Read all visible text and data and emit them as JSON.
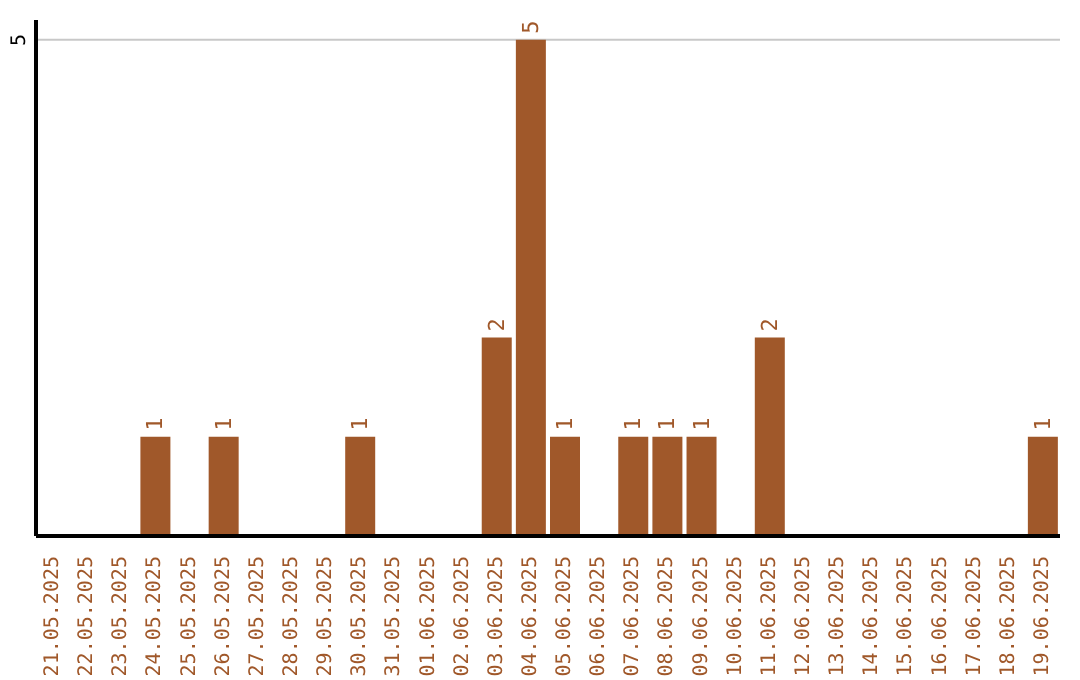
{
  "chart_data": {
    "type": "bar",
    "categories": [
      "21.05.2025",
      "22.05.2025",
      "23.05.2025",
      "24.05.2025",
      "25.05.2025",
      "26.05.2025",
      "27.05.2025",
      "28.05.2025",
      "29.05.2025",
      "30.05.2025",
      "31.05.2025",
      "01.06.2025",
      "02.06.2025",
      "03.06.2025",
      "04.06.2025",
      "05.06.2025",
      "06.06.2025",
      "07.06.2025",
      "08.06.2025",
      "09.06.2025",
      "10.06.2025",
      "11.06.2025",
      "12.06.2025",
      "13.06.2025",
      "14.06.2025",
      "15.06.2025",
      "16.06.2025",
      "17.06.2025",
      "18.06.2025",
      "19.06.2025"
    ],
    "values": [
      0,
      0,
      0,
      1,
      0,
      1,
      0,
      0,
      0,
      1,
      0,
      0,
      0,
      2,
      5,
      1,
      0,
      1,
      1,
      1,
      0,
      2,
      0,
      0,
      0,
      0,
      0,
      0,
      0,
      1
    ],
    "value_labels": [
      null,
      null,
      null,
      "1",
      null,
      "1",
      null,
      null,
      null,
      "1",
      null,
      null,
      null,
      "2",
      "5",
      "1",
      null,
      "1",
      "1",
      "1",
      null,
      "2",
      null,
      null,
      null,
      null,
      null,
      null,
      null,
      "1"
    ],
    "color": "#a0582a",
    "ylim": [
      0,
      5.2
    ],
    "yticks": [
      5
    ],
    "grid": "y"
  }
}
